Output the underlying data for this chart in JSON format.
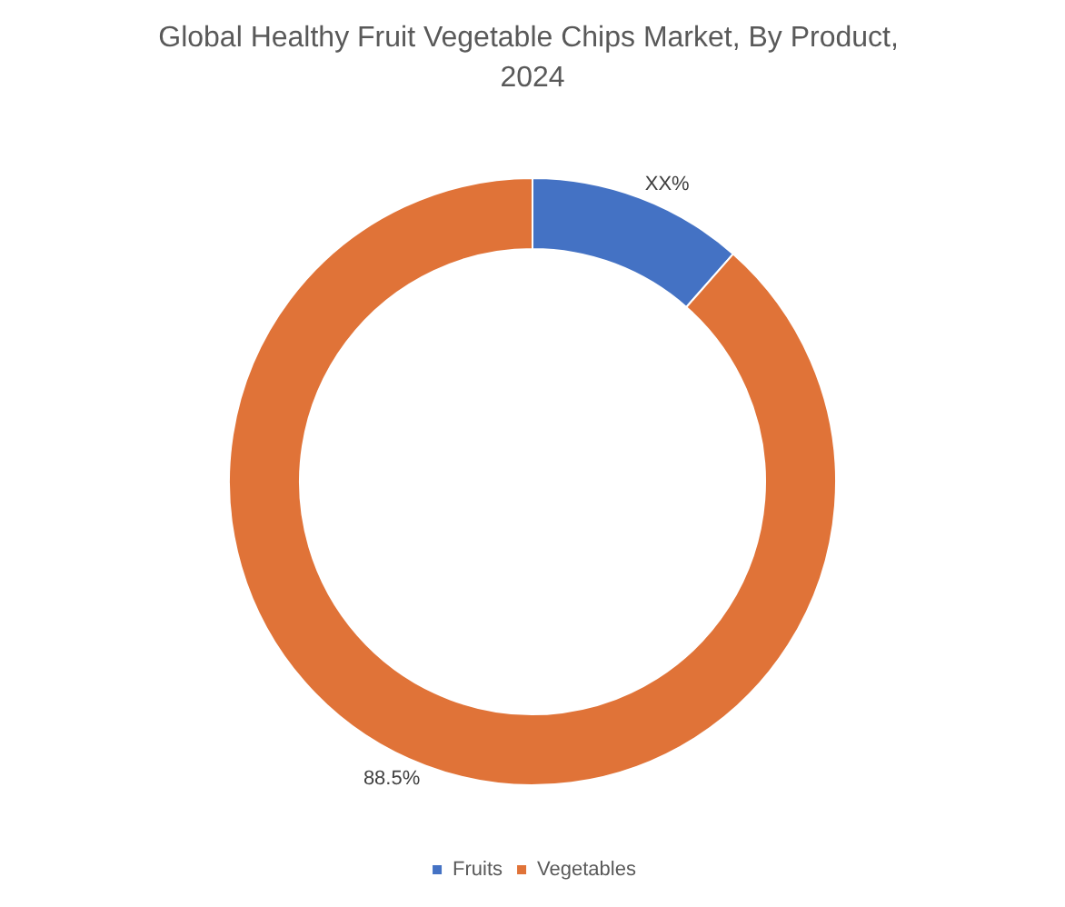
{
  "chart_data": {
    "type": "donut",
    "title": "Global Healthy Fruit Vegetable Chips Market, By Product, 2024",
    "categories": [
      "Fruits",
      "Vegetables"
    ],
    "values": [
      11.5,
      88.5
    ],
    "colors": [
      "#4472c4",
      "#e07338"
    ],
    "value_labels": [
      "XX%",
      "88.5%"
    ],
    "legend": "bottom"
  }
}
